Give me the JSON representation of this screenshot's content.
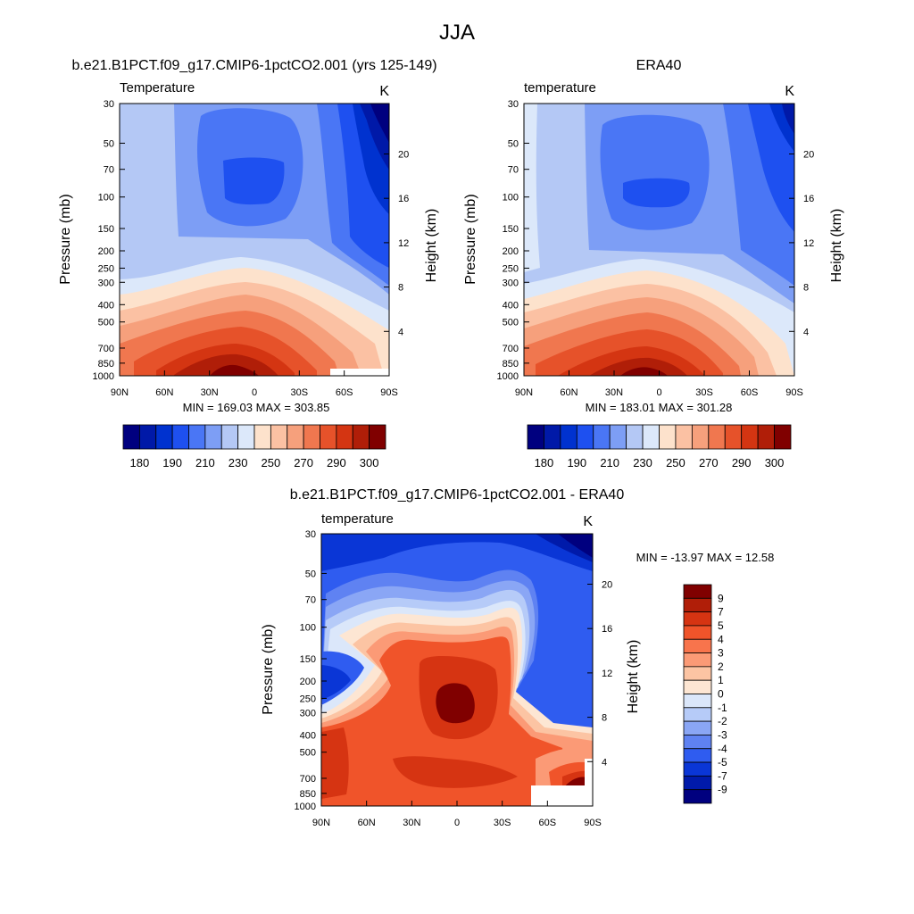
{
  "figure": {
    "title": "JJA"
  },
  "palettes": {
    "abs": [
      "#00007f",
      "#0019a8",
      "#0032cf",
      "#1e50f0",
      "#4a76f5",
      "#7d9ef5",
      "#b4c8f5",
      "#dce8fa",
      "#fde2cc",
      "#fbc1a3",
      "#f6a07c",
      "#f0774f",
      "#e6522a",
      "#d43512",
      "#b01e08",
      "#800000"
    ],
    "diff": [
      "#800000",
      "#b01e08",
      "#d63412",
      "#f0542a",
      "#f8744c",
      "#fb9a76",
      "#fcc4a3",
      "#fde6d3",
      "#dbe7fa",
      "#b6cbf8",
      "#8aa6f5",
      "#5f82f2",
      "#2f5cf0",
      "#0a36d6",
      "#001aaa",
      "#00007f"
    ]
  },
  "panels": [
    {
      "id": "model",
      "heading": "b.e21.B1PCT.f09_g17.CMIP6-1pctCO2.001 (yrs 125-149)",
      "left_label": "Temperature",
      "unit": "K",
      "ylabel": "Pressure (mb)",
      "ylabel_right": "Height (km)",
      "pressure_ticks": [
        "30",
        "50",
        "70",
        "100",
        "150",
        "200",
        "250",
        "300",
        "400",
        "500",
        "700",
        "850",
        "1000"
      ],
      "height_ticks": [
        "20",
        "16",
        "12",
        "8",
        "4"
      ],
      "lat_ticks": [
        "90N",
        "60N",
        "30N",
        "0",
        "30S",
        "60S",
        "90S"
      ],
      "stats": "MIN = 169.03  MAX = 303.85",
      "colorbar_labels": [
        "180",
        "190",
        "210",
        "230",
        "250",
        "270",
        "290",
        "300"
      ]
    },
    {
      "id": "obs",
      "heading": "ERA40",
      "left_label": "temperature",
      "unit": "K",
      "ylabel": "Pressure (mb)",
      "ylabel_right": "Height (km)",
      "pressure_ticks": [
        "30",
        "50",
        "70",
        "100",
        "150",
        "200",
        "250",
        "300",
        "400",
        "500",
        "700",
        "850",
        "1000"
      ],
      "height_ticks": [
        "20",
        "16",
        "12",
        "8",
        "4"
      ],
      "lat_ticks": [
        "90N",
        "60N",
        "30N",
        "0",
        "30S",
        "60S",
        "90S"
      ],
      "stats": "MIN = 183.01  MAX = 301.28",
      "colorbar_labels": [
        "180",
        "190",
        "210",
        "230",
        "250",
        "270",
        "290",
        "300"
      ]
    },
    {
      "id": "diff",
      "heading": "b.e21.B1PCT.f09_g17.CMIP6-1pctCO2.001 - ERA40",
      "left_label": "temperature",
      "unit": "K",
      "ylabel": "Pressure (mb)",
      "ylabel_right": "Height (km)",
      "pressure_ticks": [
        "30",
        "50",
        "70",
        "100",
        "150",
        "200",
        "250",
        "300",
        "400",
        "500",
        "700",
        "850",
        "1000"
      ],
      "height_ticks": [
        "20",
        "16",
        "12",
        "8",
        "4"
      ],
      "lat_ticks": [
        "90N",
        "60N",
        "30N",
        "0",
        "30S",
        "60S",
        "90S"
      ],
      "stats": "MIN = -13.97  MAX =  12.58",
      "colorbar_labels": [
        "9",
        "7",
        "5",
        "4",
        "3",
        "2",
        "1",
        "0",
        "-1",
        "-2",
        "-3",
        "-4",
        "-5",
        "-7",
        "-9"
      ]
    }
  ],
  "chart_data": [
    {
      "type": "heatmap",
      "title": "b.e21.B1PCT.f09_g17.CMIP6-1pctCO2.001 (yrs 125-149)",
      "variable": "Temperature",
      "unit": "K",
      "x_axis": "latitude",
      "xlim": [
        90,
        -90
      ],
      "y_axis": "pressure (mb), log scale, inverted",
      "ylim": [
        1000,
        30
      ],
      "min": 169.03,
      "max": 303.85,
      "contour_levels": [
        175,
        180,
        185,
        190,
        200,
        210,
        220,
        230,
        240,
        250,
        260,
        270,
        280,
        290,
        295,
        300
      ],
      "colorbar_labels": [
        180,
        190,
        210,
        230,
        250,
        270,
        290,
        300
      ]
    },
    {
      "type": "heatmap",
      "title": "ERA40",
      "variable": "temperature",
      "unit": "K",
      "x_axis": "latitude",
      "xlim": [
        90,
        -90
      ],
      "y_axis": "pressure (mb), log scale, inverted",
      "ylim": [
        1000,
        30
      ],
      "min": 183.01,
      "max": 301.28,
      "contour_levels": [
        175,
        180,
        185,
        190,
        200,
        210,
        220,
        230,
        240,
        250,
        260,
        270,
        280,
        290,
        295,
        300
      ],
      "colorbar_labels": [
        180,
        190,
        210,
        230,
        250,
        270,
        290,
        300
      ]
    },
    {
      "type": "heatmap",
      "title": "b.e21.B1PCT.f09_g17.CMIP6-1pctCO2.001 - ERA40",
      "variable": "temperature",
      "unit": "K",
      "x_axis": "latitude",
      "xlim": [
        90,
        -90
      ],
      "y_axis": "pressure (mb), log scale, inverted",
      "ylim": [
        1000,
        30
      ],
      "min": -13.97,
      "max": 12.58,
      "contour_levels": [
        9,
        7,
        5,
        4,
        3,
        2,
        1,
        0,
        -1,
        -2,
        -3,
        -4,
        -5,
        -7,
        -9
      ],
      "colorbar_labels": [
        9,
        7,
        5,
        4,
        3,
        2,
        1,
        0,
        -1,
        -2,
        -3,
        -4,
        -5,
        -7,
        -9
      ]
    }
  ]
}
